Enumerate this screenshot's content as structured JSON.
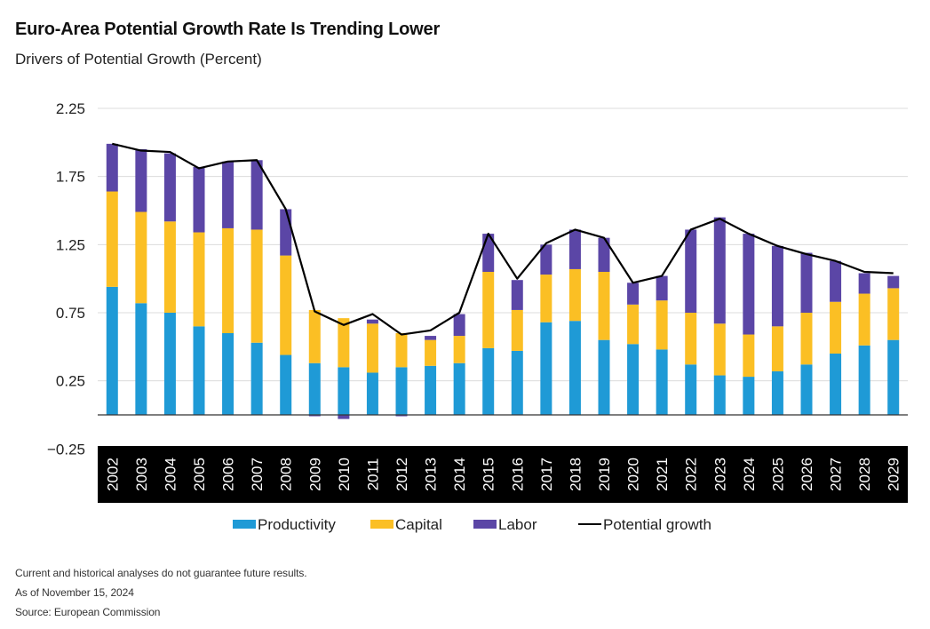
{
  "header": {
    "title": "Euro-Area Potential Growth Rate Is Trending Lower",
    "subtitle": "Drivers of Potential Growth (Percent)"
  },
  "footer": {
    "disclaimer": "Current and historical analyses do not guarantee future results.",
    "as_of": "As of November 15, 2024",
    "source": "Source: European Commission"
  },
  "colors": {
    "productivity": "#1f9ad6",
    "capital": "#fbbf24",
    "labor": "#5b46a6",
    "potential_growth": "#000000",
    "axis_band": "#000000",
    "grid": "#dcdcdc"
  },
  "chart_data": {
    "type": "bar",
    "stacked": true,
    "categories": [
      "2002",
      "2003",
      "2004",
      "2005",
      "2006",
      "2007",
      "2008",
      "2009",
      "2010",
      "2011",
      "2012",
      "2013",
      "2014",
      "2015",
      "2016",
      "2017",
      "2018",
      "2019",
      "2020",
      "2021",
      "2022",
      "2023",
      "2024",
      "2025",
      "2026",
      "2027",
      "2028",
      "2029"
    ],
    "series": [
      {
        "name": "Productivity",
        "color_key": "productivity",
        "values": [
          0.94,
          0.82,
          0.75,
          0.65,
          0.6,
          0.53,
          0.44,
          0.38,
          0.35,
          0.31,
          0.35,
          0.36,
          0.38,
          0.49,
          0.47,
          0.68,
          0.69,
          0.55,
          0.52,
          0.48,
          0.37,
          0.29,
          0.28,
          0.32,
          0.37,
          0.45,
          0.51,
          0.55
        ]
      },
      {
        "name": "Capital",
        "color_key": "capital",
        "values": [
          0.7,
          0.67,
          0.67,
          0.69,
          0.77,
          0.83,
          0.73,
          0.39,
          0.36,
          0.36,
          0.25,
          0.19,
          0.2,
          0.56,
          0.3,
          0.35,
          0.38,
          0.5,
          0.29,
          0.36,
          0.38,
          0.38,
          0.31,
          0.33,
          0.38,
          0.38,
          0.38,
          0.38
        ]
      },
      {
        "name": "Labor",
        "color_key": "labor",
        "values": [
          0.35,
          0.46,
          0.5,
          0.48,
          0.49,
          0.51,
          0.34,
          -0.01,
          -0.03,
          0.03,
          -0.01,
          0.03,
          0.16,
          0.28,
          0.22,
          0.22,
          0.29,
          0.25,
          0.16,
          0.18,
          0.61,
          0.78,
          0.74,
          0.59,
          0.44,
          0.3,
          0.15,
          0.09
        ]
      }
    ],
    "line": {
      "name": "Potential growth",
      "color_key": "potential_growth",
      "values": [
        1.99,
        1.94,
        1.93,
        1.81,
        1.86,
        1.87,
        1.51,
        0.76,
        0.66,
        0.74,
        0.59,
        0.62,
        0.75,
        1.33,
        1.0,
        1.26,
        1.36,
        1.3,
        0.97,
        1.02,
        1.36,
        1.44,
        1.33,
        1.24,
        1.18,
        1.13,
        1.05,
        1.04
      ]
    },
    "y_ticks": [
      "2.25",
      "1.75",
      "1.25",
      "0.75",
      "0.25",
      "−0.25"
    ],
    "y_tick_values": [
      2.25,
      1.75,
      1.25,
      0.75,
      0.25,
      -0.25
    ],
    "ylim": [
      -0.3,
      2.25
    ],
    "grid": true,
    "legend_position": "bottom-center",
    "xlabel": "",
    "ylabel": ""
  }
}
